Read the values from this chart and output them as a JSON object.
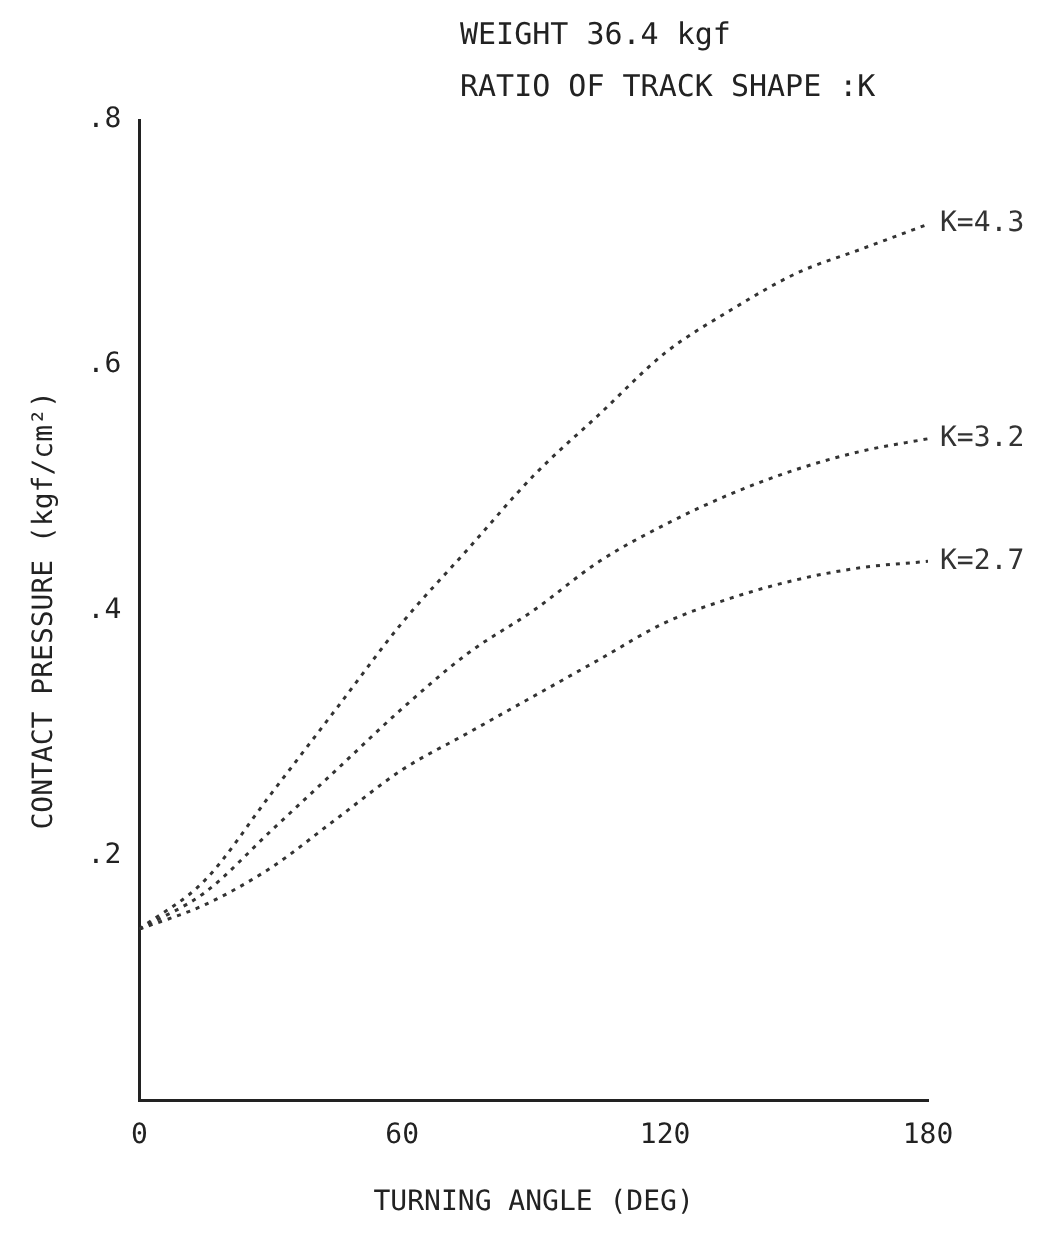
{
  "chart_data": {
    "type": "line",
    "title": "WEIGHT   36.4  kgf",
    "subtitle": "RATIO OF TRACK SHAPE :K",
    "xlabel": "TURNING ANGLE (DEG)",
    "ylabel": "CONTACT PRESSURE (kgf/cm²)",
    "x": [
      0,
      15,
      30,
      45,
      60,
      75,
      90,
      105,
      120,
      135,
      150,
      165,
      180
    ],
    "series": [
      {
        "name": "K=4.3",
        "color": "#333333",
        "values": [
          0.14,
          0.18,
          0.25,
          0.32,
          0.39,
          0.45,
          0.51,
          0.56,
          0.61,
          0.645,
          0.675,
          0.695,
          0.715
        ]
      },
      {
        "name": "K=3.2",
        "color": "#333333",
        "values": [
          0.14,
          0.17,
          0.22,
          0.27,
          0.32,
          0.365,
          0.4,
          0.44,
          0.47,
          0.495,
          0.515,
          0.53,
          0.54
        ]
      },
      {
        "name": "K=2.7",
        "color": "#333333",
        "values": [
          0.14,
          0.16,
          0.19,
          0.23,
          0.27,
          0.3,
          0.33,
          0.36,
          0.39,
          0.41,
          0.425,
          0.435,
          0.44
        ]
      }
    ],
    "xlim": [
      0,
      180
    ],
    "xticks": [
      0,
      60,
      120,
      180
    ],
    "ylim": [
      0,
      0.8
    ],
    "yticks": [
      {
        "value": 0.2,
        "label": ".2"
      },
      {
        "value": 0.4,
        "label": ".4"
      },
      {
        "value": 0.6,
        "label": ".6"
      },
      {
        "value": 0.8,
        "label": ".8"
      }
    ],
    "grid": false,
    "legend": false,
    "marker": "none",
    "line_style": "dotted"
  }
}
